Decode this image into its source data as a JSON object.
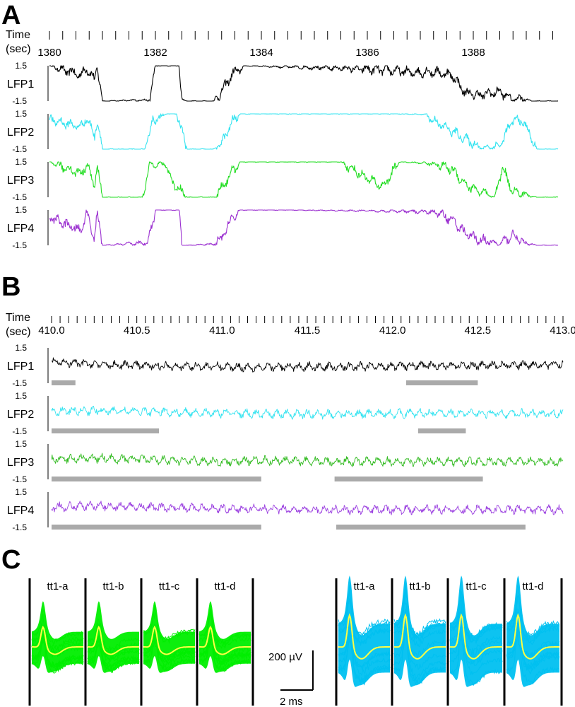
{
  "chart_data": [
    {
      "panel": "A",
      "type": "line",
      "time_label": [
        "Time",
        "(sec)"
      ],
      "x_ticks": [
        1380,
        1382,
        1384,
        1386,
        1388
      ],
      "x_range": [
        1380,
        1389.6
      ],
      "y_ticks": [
        1.5,
        -1.5
      ],
      "ylim": [
        -1.5,
        1.5
      ],
      "series": [
        {
          "name": "LFP1",
          "color": "#000000",
          "x": [
            1380,
            1380.6,
            1380.7,
            1380.85,
            1380.9,
            1381.0,
            1381.9,
            1382.0,
            1382.45,
            1382.5,
            1382.6,
            1383.1,
            1383.25,
            1383.45,
            1383.7,
            1384.5,
            1385.5,
            1386.5,
            1386.9,
            1387.1,
            1387.3,
            1387.6,
            1387.85,
            1388.1,
            1388.5,
            1388.75,
            1388.9,
            1389.1,
            1389.6
          ],
          "values": [
            1.5,
            0.7,
            1.3,
            0.3,
            1.5,
            -1.5,
            -1.4,
            1.5,
            1.5,
            -1.4,
            -1.5,
            -1.5,
            -0.7,
            0.8,
            1.5,
            1.4,
            1.3,
            1.1,
            0.9,
            1.0,
            0.95,
            0.7,
            -0.8,
            -1.0,
            -0.7,
            -1.4,
            -1.2,
            -1.5,
            -1.5
          ]
        },
        {
          "name": "LFP2",
          "color": "#33e3f0",
          "x": [
            1380,
            1380.6,
            1380.7,
            1380.85,
            1380.9,
            1381.0,
            1381.8,
            1381.95,
            1382.2,
            1382.4,
            1382.6,
            1383.1,
            1383.25,
            1383.45,
            1383.6,
            1385.0,
            1386.5,
            1387.1,
            1387.3,
            1387.8,
            1388.15,
            1388.3,
            1388.5,
            1388.75,
            1388.95,
            1389.2,
            1389.6
          ],
          "values": [
            1.0,
            0.4,
            1.2,
            -0.4,
            1.0,
            -1.5,
            -1.5,
            0.9,
            1.5,
            1.5,
            -1.5,
            -1.5,
            -1.0,
            0.8,
            1.5,
            1.5,
            1.5,
            1.45,
            0.8,
            -0.5,
            -1.4,
            -1.3,
            -1.2,
            1.0,
            0.8,
            -1.5,
            -1.5
          ]
        },
        {
          "name": "LFP3",
          "color": "#22dd22",
          "x": [
            1380,
            1380.6,
            1380.7,
            1380.85,
            1380.9,
            1381.0,
            1381.75,
            1381.9,
            1382.2,
            1382.3,
            1382.6,
            1383.1,
            1383.25,
            1383.45,
            1383.6,
            1385.5,
            1386.0,
            1386.3,
            1386.6,
            1387.1,
            1387.3,
            1387.6,
            1387.85,
            1388.1,
            1388.4,
            1388.55,
            1388.75,
            1388.9,
            1389.2,
            1389.6
          ],
          "values": [
            1.5,
            0.5,
            1.3,
            -0.5,
            1.1,
            -1.5,
            -1.5,
            1.3,
            1.3,
            -0.1,
            -1.5,
            -1.5,
            -0.7,
            0.7,
            1.5,
            1.5,
            0.1,
            -0.6,
            1.5,
            1.4,
            1.3,
            0.9,
            -0.4,
            -1.0,
            -1.5,
            1.0,
            -1.0,
            -1.2,
            -1.5,
            -1.5
          ]
        },
        {
          "name": "LFP4",
          "color": "#9b30d0",
          "x": [
            1380,
            1380.6,
            1380.7,
            1380.85,
            1380.9,
            1381.0,
            1381.85,
            1382.0,
            1382.45,
            1382.5,
            1382.6,
            1383.1,
            1383.25,
            1383.45,
            1383.6,
            1384.5,
            1385.5,
            1386.5,
            1387.1,
            1387.3,
            1387.6,
            1387.85,
            1388.1,
            1388.5,
            1388.75,
            1388.95,
            1389.2,
            1389.6
          ],
          "values": [
            0.9,
            -0.3,
            1.3,
            -0.9,
            1.2,
            -1.5,
            -1.3,
            1.5,
            1.5,
            -1.5,
            -1.5,
            -1.4,
            -0.9,
            0.8,
            1.5,
            1.5,
            1.45,
            1.4,
            1.35,
            1.3,
            0.7,
            -0.5,
            -1.0,
            -1.4,
            -0.6,
            -1.3,
            -1.5,
            -1.5
          ]
        }
      ]
    },
    {
      "panel": "B",
      "type": "line",
      "time_label": [
        "Time",
        "(sec)"
      ],
      "x_ticks": [
        "410.0",
        "410.5",
        "411.0",
        "411.5",
        "412.0",
        "412.5",
        "413.0"
      ],
      "x_range": [
        410.0,
        413.0
      ],
      "y_ticks": [
        1.5,
        -1.5
      ],
      "ylim": [
        -1.5,
        1.5
      ],
      "series": [
        {
          "name": "LFP1",
          "color": "#000000",
          "x": [
            410.0,
            410.25,
            410.5,
            410.75,
            411.0,
            411.25,
            411.5,
            411.75,
            412.0,
            412.25,
            412.5,
            412.75,
            413.0
          ],
          "values": [
            0.3,
            0.1,
            0.0,
            -0.05,
            -0.1,
            -0.15,
            -0.1,
            -0.1,
            -0.05,
            0.0,
            0.0,
            0.05,
            0.1
          ],
          "bars": [
            [
              410.0,
              410.14
            ],
            [
              412.08,
              412.5
            ]
          ]
        },
        {
          "name": "LFP2",
          "color": "#33e3f0",
          "x": [
            410.0,
            410.25,
            410.5,
            410.75,
            411.0,
            411.25,
            411.5,
            411.75,
            412.0,
            412.25,
            412.5,
            412.75,
            413.0
          ],
          "values": [
            0.2,
            0.25,
            0.2,
            0.1,
            0.05,
            -0.05,
            -0.05,
            -0.05,
            0.0,
            0.05,
            0.0,
            0.0,
            0.0
          ],
          "bars": [
            [
              410.0,
              410.63
            ],
            [
              412.15,
              412.43
            ]
          ]
        },
        {
          "name": "LFP3",
          "color": "#33bb22",
          "x": [
            410.0,
            410.25,
            410.5,
            410.75,
            411.0,
            411.25,
            411.5,
            411.75,
            412.0,
            412.25,
            412.5,
            412.75,
            413.0
          ],
          "values": [
            0.2,
            0.3,
            0.2,
            0.1,
            0.0,
            0.1,
            0.05,
            0.0,
            0.0,
            0.05,
            0.0,
            0.0,
            -0.05
          ],
          "bars": [
            [
              410.0,
              411.23
            ],
            [
              411.66,
              412.53
            ]
          ]
        },
        {
          "name": "LFP4",
          "color": "#9b40e0",
          "x": [
            410.0,
            410.25,
            410.5,
            410.75,
            411.0,
            411.25,
            411.5,
            411.75,
            412.0,
            412.25,
            412.5,
            412.75,
            413.0
          ],
          "values": [
            0.2,
            0.35,
            0.25,
            0.15,
            0.1,
            0.05,
            0.0,
            0.0,
            0.0,
            0.05,
            0.0,
            0.0,
            0.0
          ],
          "bars": [
            [
              410.0,
              411.23
            ],
            [
              411.67,
              412.78
            ]
          ]
        }
      ]
    },
    {
      "panel": "C",
      "type": "line",
      "scale_bar": {
        "amplitude": "200 µV",
        "time": "2 ms"
      },
      "groups": [
        {
          "cloud_color": "#00ee00",
          "mean_color": "#ffff44",
          "channels": [
            "tt1-a",
            "tt1-b",
            "tt1-c",
            "tt1-d"
          ]
        },
        {
          "cloud_color": "#00c0f0",
          "mean_color": "#ffff44",
          "channels": [
            "tt1-a",
            "tt1-b",
            "tt1-c",
            "tt1-d"
          ]
        }
      ]
    }
  ],
  "panels": {
    "a": "A",
    "b": "B",
    "c": "C"
  }
}
